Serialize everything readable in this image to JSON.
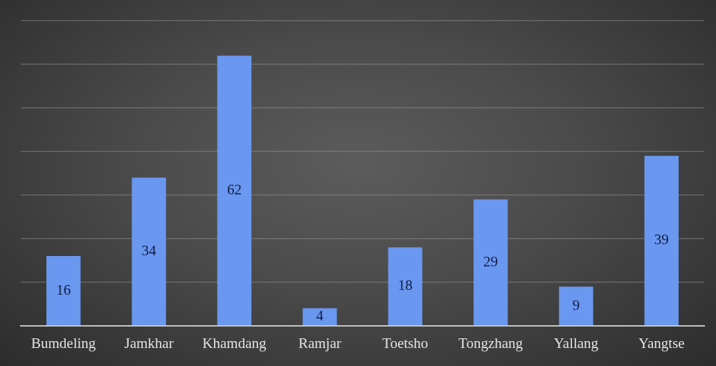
{
  "chart_data": {
    "type": "bar",
    "categories": [
      "Bumdeling",
      "Jamkhar",
      "Khamdang",
      "Ramjar",
      "Toetsho",
      "Tongzhang",
      "Yallang",
      "Yangtse"
    ],
    "values": [
      16,
      34,
      62,
      4,
      18,
      29,
      9,
      39
    ],
    "color": "#6a97ef",
    "ylim": [
      0,
      70
    ],
    "yticks": [
      {
        "value": 0,
        "label": null
      },
      {
        "value": 10,
        "label": null
      },
      {
        "value": 20,
        "label": null
      },
      {
        "value": 30,
        "label": null
      },
      {
        "value": 40,
        "label": null
      },
      {
        "value": 50,
        "label": null
      },
      {
        "value": 60,
        "label": null
      },
      {
        "value": 70,
        "label": null
      }
    ],
    "grid": "y",
    "tick_labels": "x",
    "data_labels": true
  }
}
